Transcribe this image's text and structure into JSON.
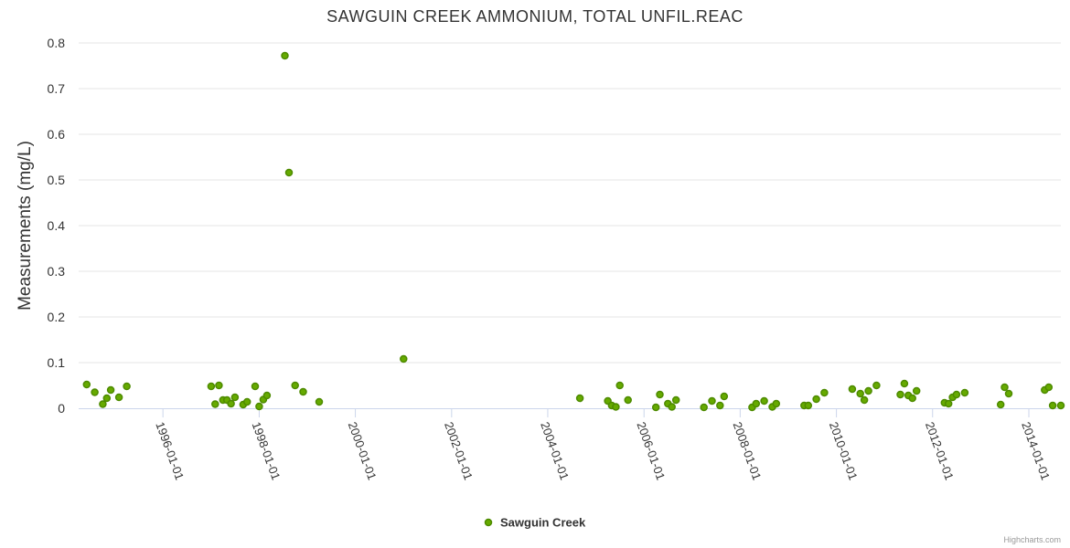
{
  "chart_data": {
    "type": "scatter",
    "title": "SAWGUIN CREEK AMMONIUM, TOTAL UNFIL.REAC",
    "ylabel": "Measurements (mg/L)",
    "xlabel": "",
    "ylim": [
      0,
      0.8
    ],
    "yticks": [
      "0",
      "0.1",
      "0.2",
      "0.3",
      "0.4",
      "0.5",
      "0.6",
      "0.7",
      "0.8"
    ],
    "xlim": [
      "1994-04-01",
      "2014-09-01"
    ],
    "xticks": [
      "1996-01-01",
      "1998-01-01",
      "2000-01-01",
      "2002-01-01",
      "2004-01-01",
      "2006-01-01",
      "2008-01-01",
      "2010-01-01",
      "2012-01-01",
      "2014-01-01"
    ],
    "legend_position": "bottom-center",
    "grid": true,
    "series": [
      {
        "name": "Sawguin Creek",
        "color": "#66aa00",
        "x": [
          "1994-06-01",
          "1994-08-01",
          "1994-10-01",
          "1994-11-01",
          "1994-12-01",
          "1995-02-01",
          "1995-04-01",
          "1997-01-01",
          "1997-02-01",
          "1997-03-01",
          "1997-04-01",
          "1997-05-01",
          "1997-06-01",
          "1997-07-01",
          "1997-09-01",
          "1997-10-01",
          "1997-12-01",
          "1998-01-01",
          "1998-02-01",
          "1998-03-01",
          "1998-07-15",
          "1998-08-15",
          "1998-10-01",
          "1998-12-01",
          "1999-04-01",
          "2001-01-01",
          "2004-09-01",
          "2005-04-01",
          "2005-05-01",
          "2005-06-01",
          "2005-07-01",
          "2005-09-01",
          "2006-04-01",
          "2006-05-01",
          "2006-07-01",
          "2006-08-01",
          "2006-09-01",
          "2007-04-01",
          "2007-06-01",
          "2007-08-01",
          "2007-09-01",
          "2008-04-01",
          "2008-05-01",
          "2008-07-01",
          "2008-09-01",
          "2008-10-01",
          "2009-05-01",
          "2009-06-01",
          "2009-08-01",
          "2009-10-01",
          "2010-05-01",
          "2010-07-01",
          "2010-08-01",
          "2010-09-01",
          "2010-11-01",
          "2011-05-01",
          "2011-06-01",
          "2011-07-01",
          "2011-08-01",
          "2011-09-01",
          "2012-04-01",
          "2012-05-01",
          "2012-06-01",
          "2012-07-01",
          "2012-09-01",
          "2013-06-01",
          "2013-07-01",
          "2013-08-01",
          "2014-05-01",
          "2014-06-01",
          "2014-07-01",
          "2014-09-01"
        ],
        "y": [
          0.052,
          0.035,
          0.009,
          0.022,
          0.04,
          0.024,
          0.048,
          0.048,
          0.009,
          0.05,
          0.018,
          0.018,
          0.01,
          0.024,
          0.008,
          0.014,
          0.048,
          0.004,
          0.019,
          0.028,
          0.772,
          0.516,
          0.05,
          0.036,
          0.014,
          0.108,
          0.022,
          0.016,
          0.006,
          0.003,
          0.05,
          0.018,
          0.002,
          0.03,
          0.01,
          0.003,
          0.018,
          0.002,
          0.016,
          0.006,
          0.026,
          0.002,
          0.01,
          0.016,
          0.003,
          0.01,
          0.006,
          0.006,
          0.02,
          0.034,
          0.042,
          0.032,
          0.018,
          0.038,
          0.05,
          0.03,
          0.054,
          0.028,
          0.022,
          0.038,
          0.012,
          0.01,
          0.024,
          0.03,
          0.034,
          0.008,
          0.046,
          0.032,
          0.04,
          0.046,
          0.006,
          0.006
        ]
      }
    ]
  },
  "credits": "Highcharts.com"
}
